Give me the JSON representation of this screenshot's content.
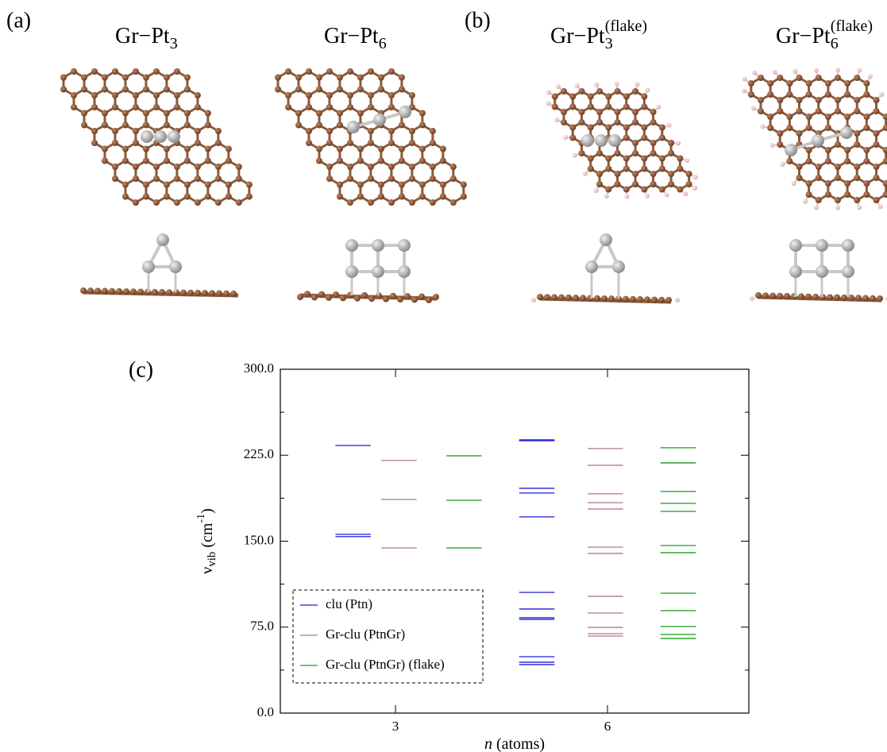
{
  "figure": {
    "panels": [
      "(a)",
      "(b)",
      "(c)"
    ],
    "structures": [
      {
        "label": "Gr−Pt",
        "sub": "3"
      },
      {
        "label": "Gr−Pt",
        "sub": "6"
      },
      {
        "label": "Gr−Pt",
        "sub": "3",
        "sup": "(flake)"
      },
      {
        "label": "Gr−Pt",
        "sub": "6",
        "sup": "(flake)"
      }
    ]
  },
  "chart_data": {
    "type": "levels",
    "xlabel": {
      "italic": "n",
      "rest": " (atoms)"
    },
    "ylabel": {
      "symbol": "ν",
      "sub": "vib",
      "unit": " (cm",
      "sup": "-1",
      "close": ")"
    },
    "xlim": [
      1.37,
      8
    ],
    "xticks": [
      3,
      6
    ],
    "ylim": [
      0,
      300
    ],
    "yticks": [
      {
        "value": 0,
        "label": "0.0"
      },
      {
        "value": 75,
        "label": "75.0"
      },
      {
        "value": 150,
        "label": "150.0"
      },
      {
        "value": 225,
        "label": "225.0"
      },
      {
        "value": 300,
        "label": "300.0"
      }
    ],
    "legend": "bottom-left",
    "series": [
      {
        "name": "clu (Ptn)",
        "color": "#1f1fd6",
        "x": [
          2.4,
          2.4,
          2.4,
          5,
          5,
          5,
          5,
          5,
          5,
          5,
          5,
          5,
          5,
          5,
          5
        ],
        "values": [
          233.5,
          156,
          154,
          238.4,
          237.7,
          196.1,
          192,
          171.2,
          105.3,
          90.8,
          83.2,
          81.8,
          49.2,
          44.4,
          42.3
        ]
      },
      {
        "name": "Gr-clu (PtnGr)",
        "color": "#b07a80",
        "x": [
          3.05,
          3.05,
          3.05,
          5.97,
          5.97,
          5.97,
          5.97,
          5.97,
          5.97,
          5.97,
          5.97,
          5.97,
          5.97,
          5.97,
          5.97
        ],
        "values": [
          220.4,
          186.4,
          144.1,
          230.8,
          216.2,
          191.3,
          183.6,
          178.1,
          144.8,
          139.3,
          101.9,
          87.3,
          74.8,
          69.3,
          67.2
        ]
      },
      {
        "name": "Gr-clu (PtnGr) (flake)",
        "color": "#1a9a1a",
        "x": [
          3.97,
          3.97,
          3.97,
          7,
          7,
          7,
          7,
          7,
          7,
          7,
          7,
          7,
          7,
          7,
          7
        ],
        "values": [
          224.5,
          185.7,
          144.1,
          231.5,
          218.3,
          193.4,
          183,
          176,
          146.2,
          140,
          104.6,
          89.4,
          75.5,
          68.6,
          65.1
        ]
      }
    ]
  }
}
